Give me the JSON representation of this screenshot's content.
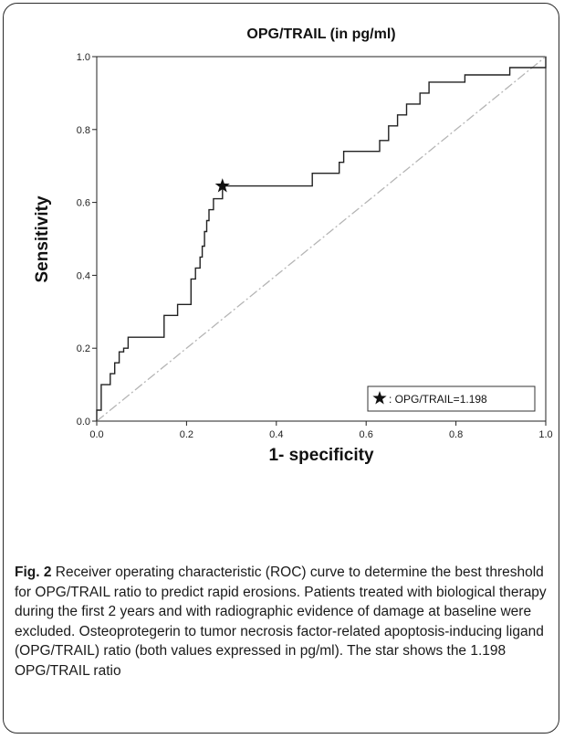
{
  "chart_data": {
    "type": "line",
    "title": "OPG/TRAIL (in pg/ml)",
    "xlabel": "1- specificity",
    "ylabel": "Sensitivity",
    "xlim": [
      0,
      1
    ],
    "ylim": [
      0,
      1
    ],
    "xticks": [
      "0.0",
      "0.2",
      "0.4",
      "0.6",
      "0.8",
      "1.0"
    ],
    "yticks": [
      "0.0",
      "0.2",
      "0.4",
      "0.6",
      "0.8",
      "1.0"
    ],
    "grid": false,
    "legend_position": "bottom-right",
    "reference_line": {
      "x": [
        0,
        1
      ],
      "y": [
        0,
        1
      ],
      "style": "dash-dot",
      "color": "#b5b5b5"
    },
    "series": [
      {
        "color": "#222222",
        "x": [
          0,
          0,
          0.01,
          0.01,
          0.03,
          0.03,
          0.04,
          0.04,
          0.05,
          0.05,
          0.06,
          0.06,
          0.07,
          0.07,
          0.15,
          0.15,
          0.18,
          0.18,
          0.21,
          0.21,
          0.22,
          0.22,
          0.23,
          0.23,
          0.235,
          0.235,
          0.24,
          0.24,
          0.245,
          0.245,
          0.25,
          0.25,
          0.26,
          0.26,
          0.28,
          0.28,
          0.48,
          0.48,
          0.54,
          0.54,
          0.55,
          0.55,
          0.63,
          0.63,
          0.65,
          0.65,
          0.67,
          0.67,
          0.69,
          0.69,
          0.72,
          0.72,
          0.74,
          0.74,
          0.82,
          0.82,
          0.92,
          0.92,
          1.0,
          1.0
        ],
        "y": [
          0,
          0.03,
          0.03,
          0.1,
          0.1,
          0.13,
          0.13,
          0.16,
          0.16,
          0.19,
          0.19,
          0.2,
          0.2,
          0.23,
          0.23,
          0.29,
          0.29,
          0.32,
          0.32,
          0.39,
          0.39,
          0.42,
          0.42,
          0.45,
          0.45,
          0.48,
          0.48,
          0.52,
          0.52,
          0.55,
          0.55,
          0.58,
          0.58,
          0.61,
          0.61,
          0.645,
          0.645,
          0.68,
          0.68,
          0.71,
          0.71,
          0.74,
          0.74,
          0.77,
          0.77,
          0.81,
          0.81,
          0.84,
          0.84,
          0.87,
          0.87,
          0.9,
          0.9,
          0.93,
          0.93,
          0.95,
          0.95,
          0.97,
          0.97,
          1.0
        ]
      }
    ],
    "marker": {
      "x": 0.28,
      "y": 0.645,
      "symbol": "star"
    },
    "legend": [
      {
        "symbol": "star",
        "label": ": OPG/TRAIL=1.198"
      }
    ]
  },
  "caption": {
    "label": "Fig. 2",
    "text": " Receiver operating characteristic (ROC) curve to determine the best threshold for OPG/TRAIL ratio to predict rapid erosions. Patients treated with biological therapy during the first 2 years and with radiographic evidence of damage at baseline were excluded. Osteoprotegerin to tumor necrosis factor-related apoptosis-inducing ligand (OPG/TRAIL) ratio (both values expressed in pg/ml). The star shows the 1.198 OPG/TRAIL ratio"
  }
}
